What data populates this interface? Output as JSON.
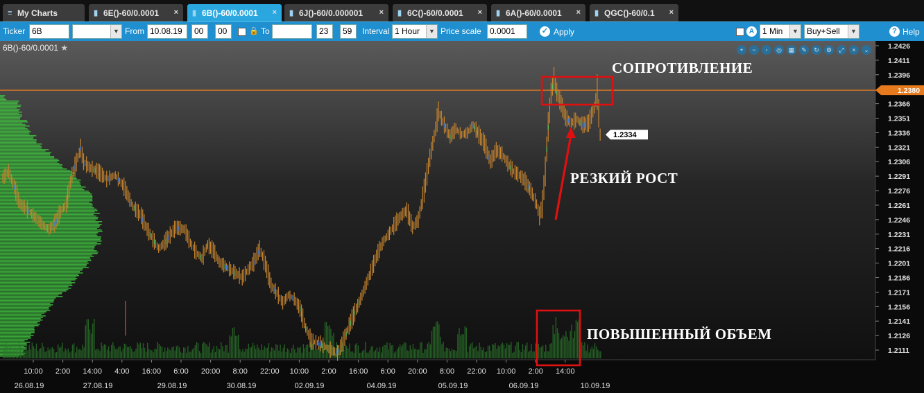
{
  "tabs": [
    {
      "label": "My Charts",
      "icon": "menu-icon",
      "active": false
    },
    {
      "label": "6E()-60/0.0001",
      "icon": "chart-icon",
      "active": false
    },
    {
      "label": "6B()-60/0.0001",
      "icon": "chart-icon",
      "active": true
    },
    {
      "label": "6J()-60/0.000001",
      "icon": "chart-icon",
      "active": false
    },
    {
      "label": "6C()-60/0.0001",
      "icon": "chart-icon",
      "active": false
    },
    {
      "label": "6A()-60/0.0001",
      "icon": "chart-icon",
      "active": false
    },
    {
      "label": "QGC()-60/0.1",
      "icon": "chart-icon",
      "active": false
    }
  ],
  "toolbar": {
    "ticker_label": "Ticker",
    "ticker_value": "6B",
    "from_label": "From",
    "from_date": "10.08.19",
    "from_hour": "00",
    "from_min": "00",
    "to_label": "To",
    "to_date": "",
    "to_hour": "23",
    "to_min": "59",
    "interval_label": "Interval",
    "interval_value": "1 Hour",
    "price_scale_label": "Price scale",
    "price_scale_value": "0.0001",
    "apply_label": "Apply",
    "tf_value": "1 Min",
    "side_value": "Buy+Sell",
    "help_label": "Help"
  },
  "chart": {
    "symbol_label": "6B()-60/0.0001",
    "current_price": "1.2380",
    "last_price": "1.2334",
    "annotations": {
      "resistance": "СОПРОТИВЛЕНИЕ",
      "sharp_rise": "РЕЗКИЙ РОСТ",
      "high_volume": "ПОВЫШЕННЫЙ ОБЪЕМ"
    },
    "colors": {
      "price_line": "#e87a1e",
      "bar": "#c7842e",
      "profile": "#3fbf3f",
      "annotation_box": "#e01010"
    }
  },
  "chart_data": {
    "type": "bar",
    "y_ticks": [
      "1.2426",
      "1.2411",
      "1.2396",
      "1.2380",
      "1.2366",
      "1.2351",
      "1.2336",
      "1.2321",
      "1.2306",
      "1.2291",
      "1.2276",
      "1.2261",
      "1.2246",
      "1.2231",
      "1.2216",
      "1.2201",
      "1.2186",
      "1.2171",
      "1.2156",
      "1.2141",
      "1.2126",
      "1.2111"
    ],
    "ylim": [
      1.2101,
      1.2431
    ],
    "x_time_labels": [
      "10:00",
      "2:00",
      "14:00",
      "4:00",
      "16:00",
      "6:00",
      "20:00",
      "8:00",
      "22:00",
      "10:00",
      "2:00",
      "16:00",
      "6:00",
      "20:00",
      "8:00",
      "22:00",
      "10:00",
      "2:00",
      "14:00"
    ],
    "x_date_labels": [
      "26.08.19",
      "27.08.19",
      "29.08.19",
      "30.08.19",
      "02.09.19",
      "04.09.19",
      "05.09.19",
      "06.09.19",
      "10.09.19"
    ],
    "price_path": [
      [
        0,
        1.2289
      ],
      [
        4,
        1.2296
      ],
      [
        8,
        1.228
      ],
      [
        12,
        1.2262
      ],
      [
        16,
        1.2258
      ],
      [
        20,
        1.2252
      ],
      [
        24,
        1.2246
      ],
      [
        28,
        1.224
      ],
      [
        32,
        1.2236
      ],
      [
        36,
        1.2242
      ],
      [
        40,
        1.2254
      ],
      [
        44,
        1.2262
      ],
      [
        48,
        1.2292
      ],
      [
        52,
        1.231
      ],
      [
        54,
        1.232
      ],
      [
        56,
        1.2306
      ],
      [
        60,
        1.23
      ],
      [
        66,
        1.2296
      ],
      [
        72,
        1.2288
      ],
      [
        78,
        1.2292
      ],
      [
        84,
        1.228
      ],
      [
        90,
        1.226
      ],
      [
        96,
        1.225
      ],
      [
        100,
        1.2236
      ],
      [
        104,
        1.2226
      ],
      [
        108,
        1.2216
      ],
      [
        112,
        1.2222
      ],
      [
        116,
        1.223
      ],
      [
        120,
        1.2238
      ],
      [
        126,
        1.2236
      ],
      [
        130,
        1.2222
      ],
      [
        134,
        1.2212
      ],
      [
        138,
        1.2206
      ],
      [
        142,
        1.222
      ],
      [
        146,
        1.2214
      ],
      [
        150,
        1.2202
      ],
      [
        156,
        1.2196
      ],
      [
        162,
        1.219
      ],
      [
        166,
        1.2186
      ],
      [
        170,
        1.2194
      ],
      [
        174,
        1.2202
      ],
      [
        178,
        1.2216
      ],
      [
        182,
        1.22
      ],
      [
        186,
        1.2178
      ],
      [
        190,
        1.217
      ],
      [
        194,
        1.216
      ],
      [
        198,
        1.2168
      ],
      [
        202,
        1.2164
      ],
      [
        206,
        1.2154
      ],
      [
        210,
        1.2134
      ],
      [
        214,
        1.212
      ],
      [
        220,
        1.2118
      ],
      [
        226,
        1.2112
      ],
      [
        232,
        1.2108
      ],
      [
        236,
        1.212
      ],
      [
        240,
        1.2136
      ],
      [
        244,
        1.215
      ],
      [
        248,
        1.2164
      ],
      [
        252,
        1.218
      ],
      [
        256,
        1.2196
      ],
      [
        260,
        1.2212
      ],
      [
        264,
        1.2224
      ],
      [
        268,
        1.2232
      ],
      [
        272,
        1.2242
      ],
      [
        276,
        1.225
      ],
      [
        280,
        1.2256
      ],
      [
        284,
        1.2238
      ],
      [
        288,
        1.2246
      ],
      [
        292,
        1.2276
      ],
      [
        296,
        1.231
      ],
      [
        300,
        1.234
      ],
      [
        302,
        1.2358
      ],
      [
        306,
        1.2344
      ],
      [
        310,
        1.2332
      ],
      [
        314,
        1.234
      ],
      [
        318,
        1.2334
      ],
      [
        322,
        1.2336
      ],
      [
        326,
        1.2344
      ],
      [
        330,
        1.2334
      ],
      [
        334,
        1.2324
      ],
      [
        338,
        1.2306
      ],
      [
        342,
        1.2318
      ],
      [
        346,
        1.2314
      ],
      [
        350,
        1.2304
      ],
      [
        354,
        1.2296
      ],
      [
        358,
        1.2292
      ],
      [
        362,
        1.2286
      ],
      [
        366,
        1.2276
      ],
      [
        370,
        1.2262
      ],
      [
        372,
        1.225
      ],
      [
        374,
        1.2262
      ],
      [
        376,
        1.2296
      ],
      [
        378,
        1.2342
      ],
      [
        380,
        1.2376
      ],
      [
        382,
        1.2392
      ],
      [
        384,
        1.2378
      ],
      [
        386,
        1.237
      ],
      [
        388,
        1.2362
      ],
      [
        390,
        1.2352
      ],
      [
        394,
        1.2346
      ],
      [
        398,
        1.235
      ],
      [
        402,
        1.2344
      ],
      [
        406,
        1.2346
      ],
      [
        410,
        1.2362
      ],
      [
        412,
        1.2378
      ],
      [
        414,
        1.2334
      ]
    ],
    "volume_profile_peak_price": 1.2226,
    "volume_spike_region": "06.09.19 2:00–14:00"
  }
}
